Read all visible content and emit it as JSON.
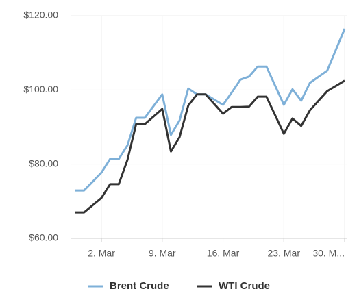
{
  "chart_data": {
    "type": "line",
    "x": [
      "27. Feb",
      "28. Feb",
      "2. Mar",
      "3. Mar",
      "4. Mar",
      "5. Mar",
      "6. Mar",
      "7. Mar",
      "9. Mar",
      "10. Mar",
      "11. Mar",
      "12. Mar",
      "13. Mar",
      "14. Mar",
      "16. Mar",
      "17. Mar",
      "18. Mar",
      "19. Mar",
      "20. Mar",
      "21. Mar",
      "23. Mar",
      "24. Mar",
      "25. Mar",
      "26. Mar",
      "28. Mar",
      "30. Mar"
    ],
    "series": [
      {
        "name": "Brent Crude",
        "color": "#7eb0d8",
        "values": [
          72.9,
          72.9,
          77.7,
          81.4,
          81.4,
          85.1,
          92.5,
          92.5,
          98.8,
          87.9,
          91.8,
          100.4,
          98.8,
          98.8,
          96.0,
          99.3,
          102.8,
          103.6,
          106.3,
          106.3,
          96.0,
          100.2,
          97.1,
          101.9,
          105.2,
          116.5
        ]
      },
      {
        "name": "WTI Crude",
        "color": "#333333",
        "values": [
          67.0,
          67.0,
          70.9,
          74.6,
          74.6,
          81.2,
          90.8,
          90.8,
          94.9,
          83.4,
          87.3,
          95.8,
          98.8,
          98.8,
          93.6,
          95.4,
          95.4,
          95.5,
          98.2,
          98.2,
          88.2,
          92.3,
          90.3,
          94.5,
          99.7,
          102.5
        ]
      }
    ],
    "xticks": [
      "2. Mar",
      "9. Mar",
      "16. Mar",
      "23. Mar",
      {
        "value": "30. Mar",
        "label": "30. M..."
      }
    ],
    "ylim": [
      60,
      120
    ],
    "yticks": [
      {
        "value": 60,
        "label": "$60.00"
      },
      {
        "value": 80,
        "label": "$80.00"
      },
      {
        "value": 100,
        "label": "$100.00"
      },
      {
        "value": 120,
        "label": "$120.00"
      }
    ],
    "grid": true
  }
}
